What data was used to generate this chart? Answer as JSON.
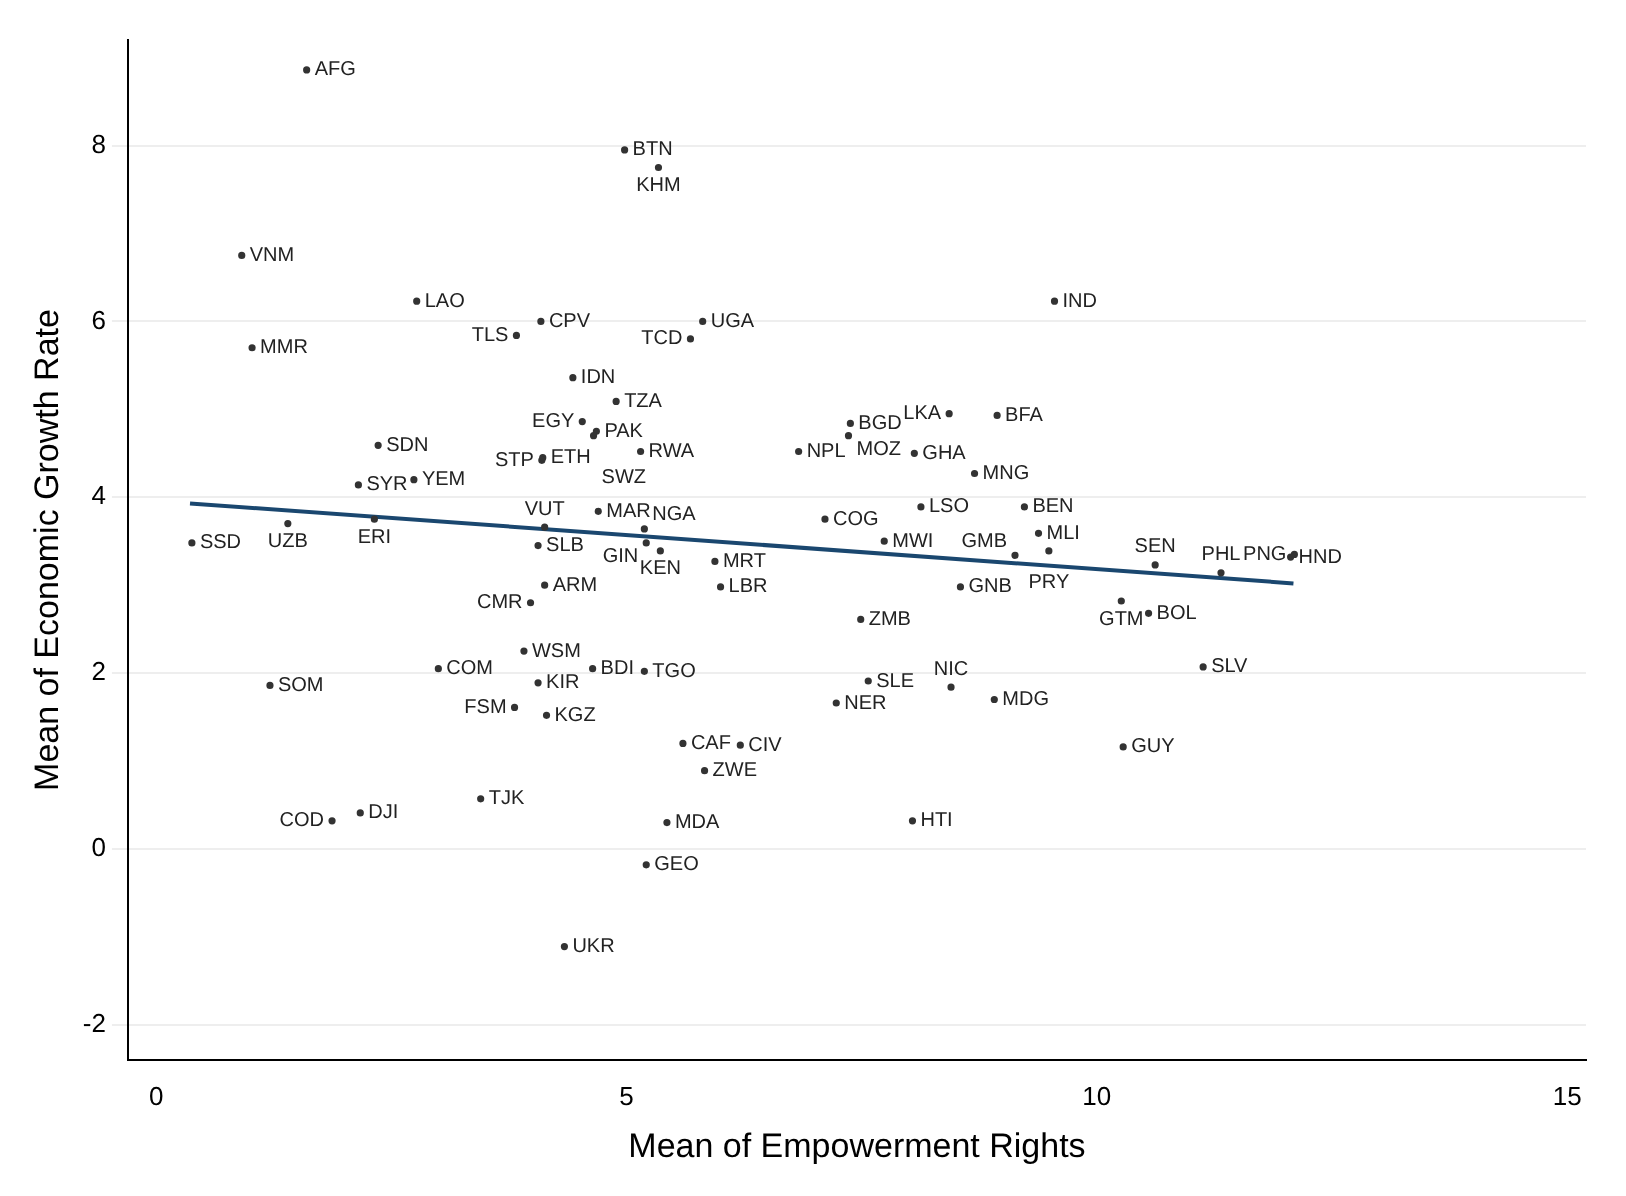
{
  "chart_data": {
    "type": "scatter",
    "xlabel": "Mean of Empowerment Rights",
    "ylabel": "Mean of Economic Growth Rate",
    "xlim": [
      -0.3,
      15.2
    ],
    "xticks": [
      0,
      5,
      10,
      15
    ],
    "ylim": [
      -2.4,
      9.2
    ],
    "yticks": [
      -2,
      0,
      2,
      4,
      6,
      8
    ],
    "grid": "y",
    "marker": "circle",
    "series": [
      {
        "color": "#333333",
        "x": [
          1.6,
          4.98,
          5.34,
          0.91,
          2.77,
          4.09,
          3.83,
          1.02,
          5.81,
          5.68,
          9.55,
          4.43,
          4.89,
          4.53,
          4.68,
          4.11,
          4.1,
          4.65,
          5.15,
          2.36,
          2.15,
          2.74,
          0.38,
          1.4,
          2.32,
          4.13,
          4.7,
          4.06,
          5.19,
          5.21,
          5.36,
          5.94,
          6.0,
          4.13,
          3.98,
          7.11,
          6.83,
          7.38,
          7.36,
          8.06,
          8.43,
          8.94,
          8.7,
          8.13,
          9.23,
          7.74,
          9.13,
          9.38,
          9.49,
          8.55,
          10.62,
          11.32,
          12.06,
          12.1,
          10.26,
          10.55,
          11.13,
          10.28,
          7.49,
          7.57,
          8.45,
          8.91,
          7.23,
          8.04,
          3.91,
          3.0,
          4.64,
          5.19,
          4.06,
          1.21,
          3.81,
          4.15,
          5.6,
          6.21,
          5.83,
          3.45,
          2.17,
          1.87,
          5.43,
          5.21,
          4.34
        ],
        "values": [
          8.86,
          7.95,
          7.75,
          6.75,
          6.23,
          6.0,
          5.84,
          5.7,
          6.0,
          5.8,
          6.23,
          5.36,
          5.09,
          4.86,
          4.75,
          4.45,
          4.42,
          4.7,
          4.52,
          4.59,
          4.14,
          4.2,
          3.48,
          3.7,
          3.75,
          3.66,
          3.84,
          3.45,
          3.64,
          3.48,
          3.39,
          3.27,
          2.98,
          3.0,
          2.8,
          3.75,
          4.52,
          4.84,
          4.7,
          4.5,
          4.95,
          4.93,
          4.27,
          3.89,
          3.89,
          3.5,
          3.34,
          3.59,
          3.39,
          2.98,
          3.23,
          3.14,
          3.32,
          3.35,
          2.82,
          2.68,
          2.07,
          1.16,
          2.61,
          1.91,
          1.84,
          1.7,
          1.66,
          0.32,
          2.25,
          2.05,
          2.05,
          2.02,
          1.89,
          1.86,
          1.61,
          1.52,
          1.2,
          1.18,
          0.89,
          0.57,
          0.41,
          0.32,
          0.3,
          -0.18,
          -1.11
        ],
        "value_labels": [
          "AFG",
          "BTN",
          "KHM",
          "VNM",
          "LAO",
          "CPV",
          "TLS",
          "MMR",
          "UGA",
          "TCD",
          "IND",
          "IDN",
          "TZA",
          "EGY",
          "PAK",
          "ETH",
          "STP",
          "SWZ",
          "RWA",
          "SDN",
          "SYR",
          "YEM",
          "SSD",
          "UZB",
          "ERI",
          "VUT",
          "MAR",
          "SLB",
          "NGA",
          "GIN",
          "KEN",
          "MRT",
          "LBR",
          "ARM",
          "CMR",
          "COG",
          "NPL",
          "BGD",
          "MOZ",
          "GHA",
          "LKA",
          "BFA",
          "MNG",
          "LSO",
          "BEN",
          "MWI",
          "GMB",
          "MLI",
          "PRY",
          "GNB",
          "SEN",
          "PHL",
          "HND",
          "PNG",
          "GTM",
          "BOL",
          "SLV",
          "GUY",
          "ZMB",
          "SLE",
          "NIC",
          "MDG",
          "NER",
          "HTI",
          "WSM",
          "COM",
          "BDI",
          "TGO",
          "KIR",
          "SOM",
          "FSM",
          "KGZ",
          "CAF",
          "CIV",
          "ZWE",
          "TJK",
          "DJI",
          "COD",
          "MDA",
          "GEO",
          "UKR"
        ]
      },
      {
        "type": "line",
        "color": "#1a476f",
        "x": [
          0.36,
          12.09
        ],
        "values": [
          3.93,
          3.02
        ],
        "marker": "none",
        "line_style": "solid"
      }
    ],
    "legend": false
  }
}
